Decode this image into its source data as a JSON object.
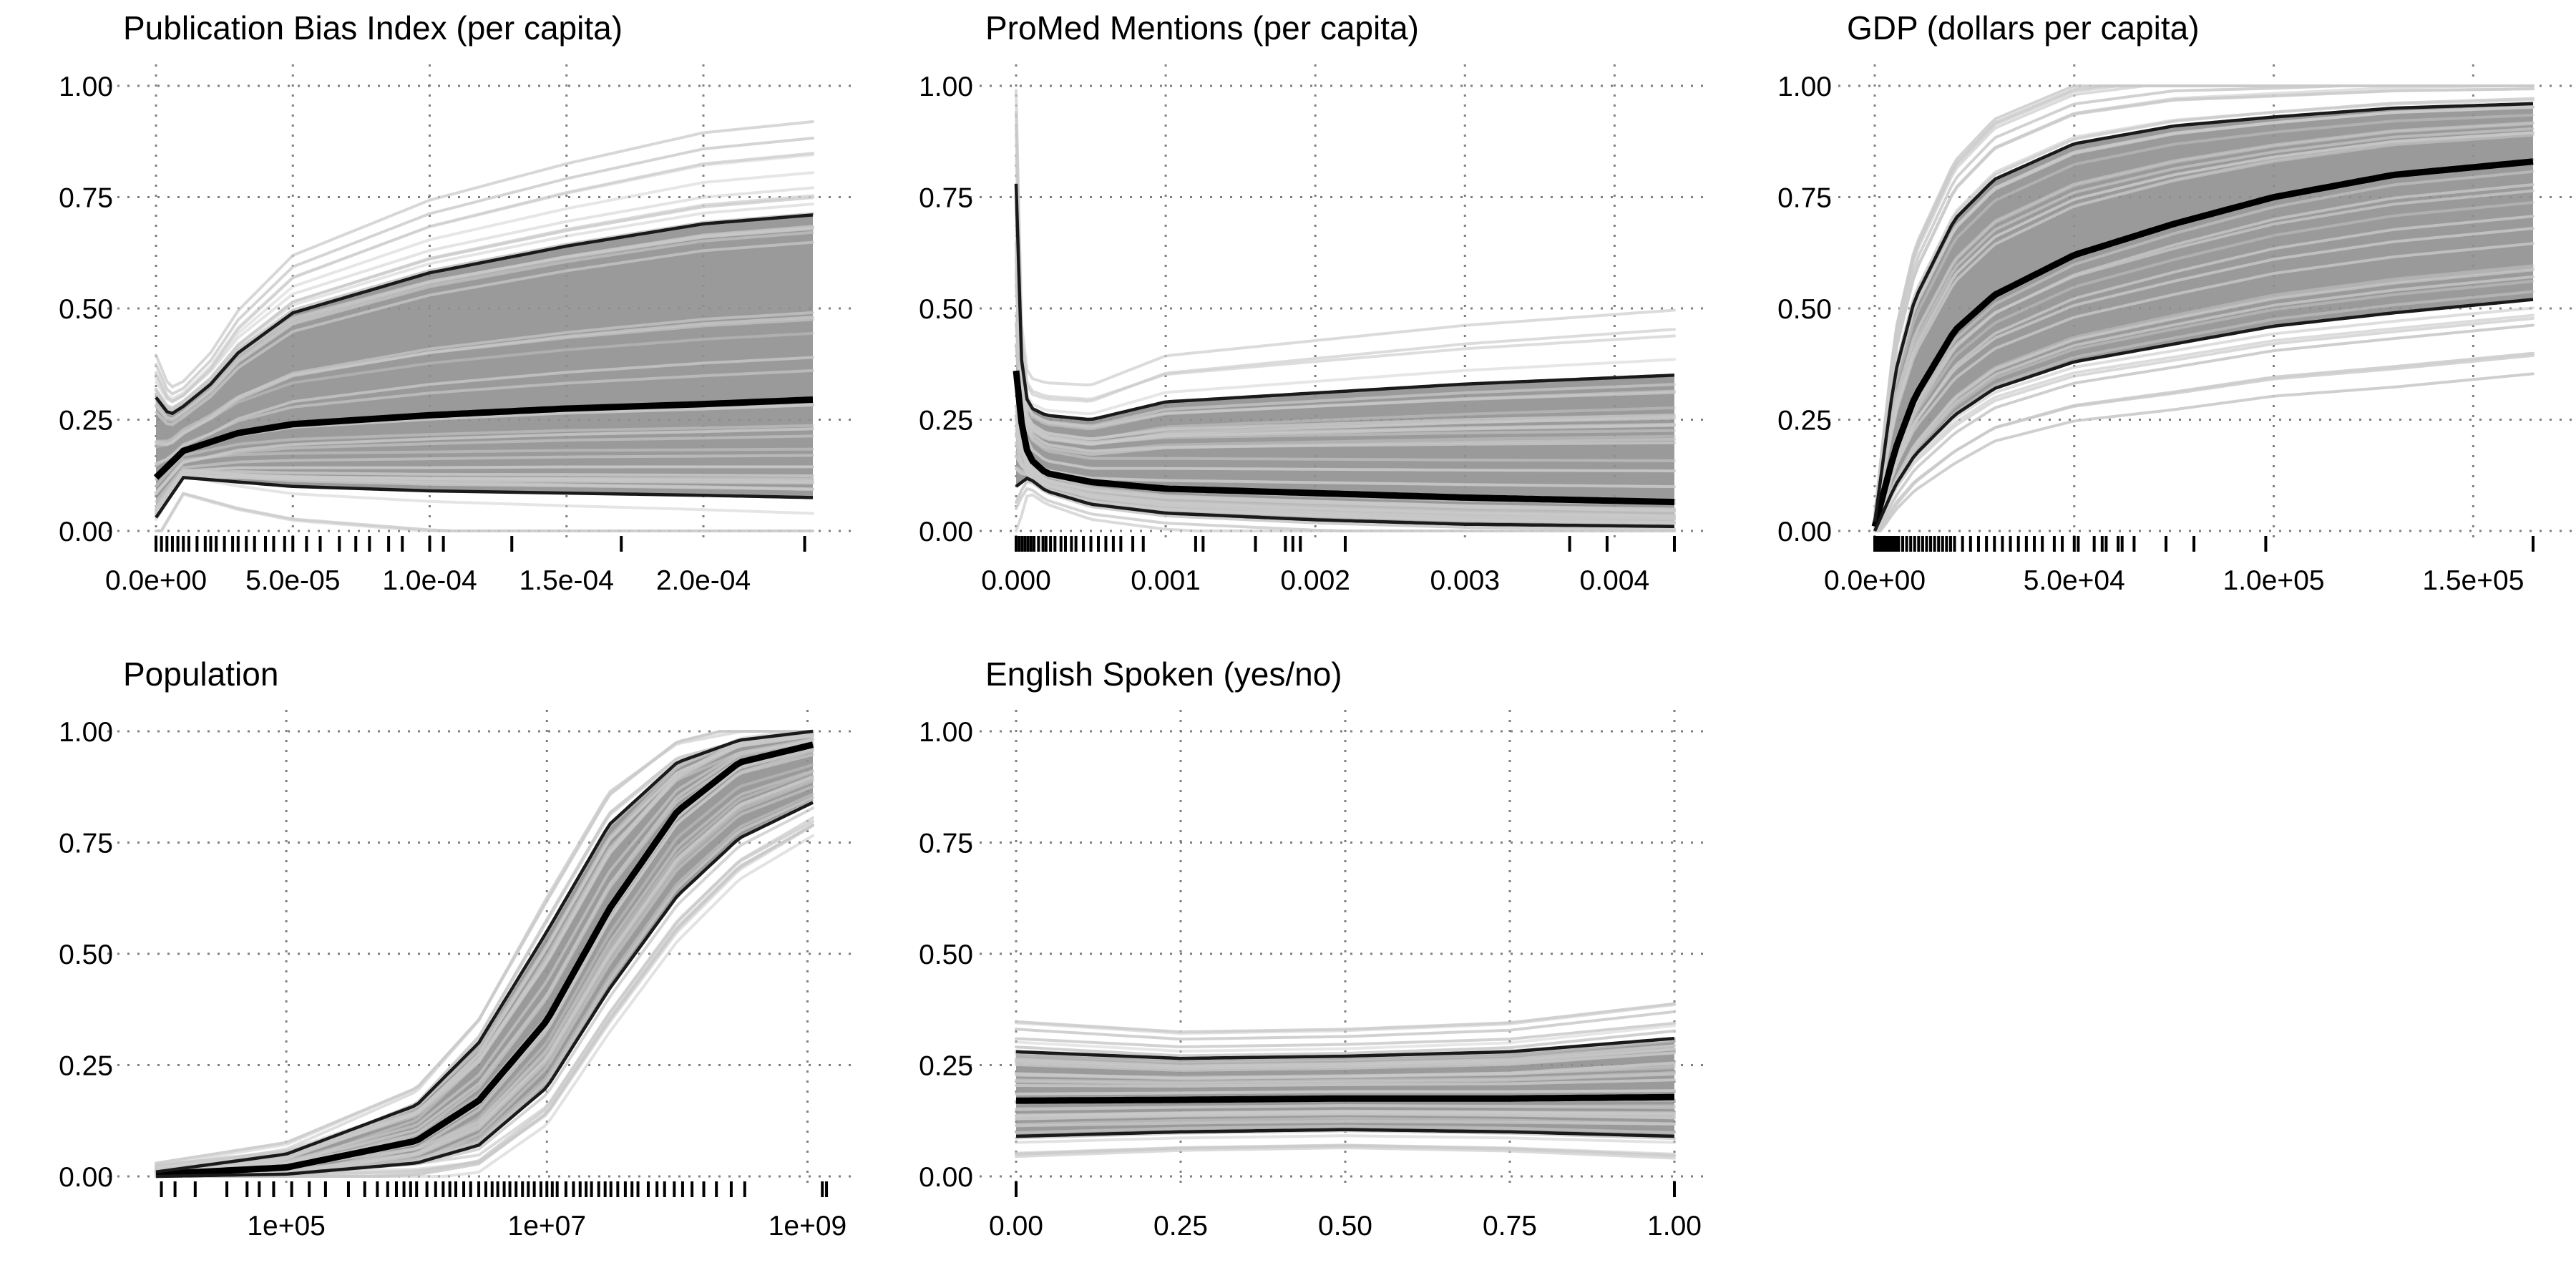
{
  "chart_data": [
    {
      "type": "line",
      "title": "Publication Bias Index (per capita)",
      "x_scale": "linear",
      "xlim": [
        0,
        0.00024
      ],
      "ylim": [
        0,
        1
      ],
      "x_ticks": [
        0,
        5e-05,
        0.0001,
        0.00015,
        0.0002
      ],
      "x_tick_labels": [
        "0.0e+00",
        "5.0e-05",
        "1.0e-04",
        "1.5e-04",
        "2.0e-04"
      ],
      "y_ticks": [
        0,
        0.25,
        0.5,
        0.75,
        1
      ],
      "y_tick_labels": [
        "0.00",
        "0.25",
        "0.50",
        "0.75",
        "1.00"
      ],
      "grid": true,
      "series": [
        {
          "role": "mean",
          "x": [
            0,
            1e-05,
            3e-05,
            5e-05,
            0.0001,
            0.00015,
            0.0002,
            0.00024
          ],
          "y": [
            0.12,
            0.18,
            0.22,
            0.24,
            0.26,
            0.275,
            0.285,
            0.295
          ]
        },
        {
          "role": "upper",
          "x": [
            0,
            5e-06,
            1e-05,
            2e-05,
            3e-05,
            5e-05,
            0.0001,
            0.00015,
            0.0002,
            0.00024
          ],
          "y": [
            0.3,
            0.26,
            0.28,
            0.33,
            0.4,
            0.49,
            0.58,
            0.64,
            0.69,
            0.71
          ]
        },
        {
          "role": "lower",
          "x": [
            0,
            1e-05,
            5e-05,
            0.0001,
            0.00015,
            0.0002,
            0.00024
          ],
          "y": [
            0.03,
            0.12,
            0.1,
            0.09,
            0.085,
            0.08,
            0.075
          ]
        }
      ],
      "rug": [
        0,
        2e-06,
        4e-06,
        6e-06,
        8e-06,
        1e-05,
        1.2e-05,
        1.5e-05,
        1.8e-05,
        2e-05,
        2.2e-05,
        2.5e-05,
        2.8e-05,
        3e-05,
        3.3e-05,
        3.6e-05,
        4e-05,
        4.3e-05,
        4.7e-05,
        5e-05,
        5.5e-05,
        6e-05,
        6.7e-05,
        7.3e-05,
        7.8e-05,
        8.5e-05,
        9e-05,
        0.0001,
        0.000105,
        0.00013,
        0.00017,
        0.000237
      ]
    },
    {
      "type": "line",
      "title": "ProMed Mentions (per capita)",
      "x_scale": "linear",
      "xlim": [
        0,
        0.0044
      ],
      "ylim": [
        0,
        1
      ],
      "x_ticks": [
        0,
        0.001,
        0.002,
        0.003,
        0.004
      ],
      "x_tick_labels": [
        "0.000",
        "0.001",
        "0.002",
        "0.003",
        "0.004"
      ],
      "y_ticks": [
        0,
        0.25,
        0.5,
        0.75,
        1
      ],
      "y_tick_labels": [
        "0.00",
        "0.25",
        "0.50",
        "0.75",
        "1.00"
      ],
      "grid": true,
      "series": [
        {
          "role": "mean",
          "x": [
            0,
            5e-05,
            0.0001,
            0.0002,
            0.0005,
            0.001,
            0.002,
            0.003,
            0.0044
          ],
          "y": [
            0.36,
            0.2,
            0.16,
            0.13,
            0.11,
            0.095,
            0.085,
            0.075,
            0.065
          ]
        },
        {
          "role": "upper",
          "x": [
            0,
            3e-05,
            8e-05,
            0.0002,
            0.0005,
            0.001,
            0.002,
            0.003,
            0.0044
          ],
          "y": [
            0.78,
            0.4,
            0.28,
            0.26,
            0.25,
            0.29,
            0.31,
            0.33,
            0.35
          ]
        },
        {
          "role": "lower",
          "x": [
            0,
            8e-05,
            0.0002,
            0.0005,
            0.001,
            0.002,
            0.003,
            0.0044
          ],
          "y": [
            0.1,
            0.12,
            0.09,
            0.06,
            0.04,
            0.025,
            0.015,
            0.01
          ]
        }
      ],
      "rug": [
        0,
        2e-05,
        4e-05,
        6e-05,
        8e-05,
        0.0001,
        0.00012,
        0.00015,
        0.00018,
        0.0002,
        0.00023,
        0.00026,
        0.0003,
        0.00033,
        0.00037,
        0.0004,
        0.00045,
        0.0005,
        0.00055,
        0.0006,
        0.00065,
        0.0007,
        0.00078,
        0.00085,
        0.0012,
        0.00125,
        0.0016,
        0.0018,
        0.00185,
        0.0019,
        0.0022,
        0.0037,
        0.00395,
        0.0044
      ]
    },
    {
      "type": "line",
      "title": "GDP (dollars per capita)",
      "x_scale": "linear",
      "xlim": [
        0,
        165000
      ],
      "ylim": [
        0,
        1
      ],
      "x_ticks": [
        0,
        50000,
        100000,
        150000
      ],
      "x_tick_labels": [
        "0.0e+00",
        "5.0e+04",
        "1.0e+05",
        "1.5e+05"
      ],
      "y_ticks": [
        0,
        0.25,
        0.5,
        0.75,
        1
      ],
      "y_tick_labels": [
        "0.00",
        "0.25",
        "0.50",
        "0.75",
        "1.00"
      ],
      "grid": true,
      "series": [
        {
          "role": "mean",
          "x": [
            0,
            5000,
            10000,
            20000,
            30000,
            50000,
            75000,
            100000,
            130000,
            165000
          ],
          "y": [
            0.01,
            0.18,
            0.3,
            0.45,
            0.53,
            0.62,
            0.69,
            0.75,
            0.8,
            0.83
          ]
        },
        {
          "role": "upper",
          "x": [
            0,
            5000,
            10000,
            20000,
            30000,
            50000,
            75000,
            100000,
            130000,
            165000
          ],
          "y": [
            0.02,
            0.35,
            0.52,
            0.7,
            0.79,
            0.87,
            0.91,
            0.93,
            0.95,
            0.96
          ]
        },
        {
          "role": "lower",
          "x": [
            0,
            5000,
            10000,
            20000,
            30000,
            50000,
            75000,
            100000,
            130000,
            165000
          ],
          "y": [
            0.0,
            0.1,
            0.17,
            0.26,
            0.32,
            0.38,
            0.42,
            0.46,
            0.49,
            0.52
          ]
        }
      ],
      "rug": [
        0,
        500,
        1000,
        1500,
        2000,
        2500,
        3000,
        3500,
        4000,
        4500,
        5000,
        5500,
        6000,
        7000,
        8000,
        9000,
        10000,
        11000,
        12000,
        13000,
        14000,
        15000,
        16000,
        17000,
        18000,
        19000,
        20000,
        22000,
        24000,
        26000,
        28000,
        30000,
        32000,
        34000,
        36000,
        38000,
        40000,
        42000,
        45000,
        47000,
        50000,
        51000,
        55000,
        57000,
        58000,
        61000,
        62000,
        65000,
        73000,
        80000,
        98000,
        165000
      ]
    },
    {
      "type": "line",
      "title": "Population",
      "x_scale": "log",
      "xlim": [
        10000,
        1100000000
      ],
      "ylim": [
        0,
        1
      ],
      "x_ticks": [
        100000,
        10000000,
        1000000000
      ],
      "x_tick_labels": [
        "1e+05",
        "1e+07",
        "1e+09"
      ],
      "y_ticks": [
        0,
        0.25,
        0.5,
        0.75,
        1
      ],
      "y_tick_labels": [
        "0.00",
        "0.25",
        "0.50",
        "0.75",
        "1.00"
      ],
      "grid": true,
      "series": [
        {
          "role": "mean",
          "x": [
            10000,
            100000,
            1000000,
            3000000,
            10000000,
            30000000,
            100000000,
            300000000,
            1100000000
          ],
          "y": [
            0.005,
            0.02,
            0.08,
            0.17,
            0.35,
            0.6,
            0.82,
            0.93,
            0.97
          ]
        },
        {
          "role": "upper",
          "x": [
            10000,
            100000,
            1000000,
            3000000,
            10000000,
            30000000,
            100000000,
            300000000,
            1100000000
          ],
          "y": [
            0.01,
            0.05,
            0.16,
            0.3,
            0.55,
            0.79,
            0.93,
            0.98,
            1.0
          ]
        },
        {
          "role": "lower",
          "x": [
            10000,
            100000,
            1000000,
            3000000,
            10000000,
            30000000,
            100000000,
            300000000,
            1100000000
          ],
          "y": [
            0.0,
            0.005,
            0.03,
            0.07,
            0.2,
            0.42,
            0.63,
            0.76,
            0.84
          ]
        }
      ],
      "rug": [
        11000,
        14000,
        20000,
        35000,
        50000,
        62000,
        80000,
        110000,
        150000,
        200000,
        300000,
        400000,
        500000,
        600000,
        700000,
        800000,
        900000,
        1000000,
        1200000,
        1400000,
        1600000,
        1800000,
        2000000,
        2300000,
        2600000,
        3000000,
        3400000,
        3800000,
        4200000,
        4700000,
        5200000,
        5800000,
        6500000,
        7200000,
        8000000,
        9000000,
        10000000,
        11000000,
        12000000,
        14000000,
        16000000,
        18000000,
        20000000,
        22000000,
        25000000,
        28000000,
        31000000,
        35000000,
        40000000,
        45000000,
        50000000,
        60000000,
        70000000,
        80000000,
        95000000,
        110000000,
        130000000,
        160000000,
        200000000,
        260000000,
        330000000,
        1300000000,
        1400000000
      ]
    },
    {
      "type": "line",
      "title": "English Spoken (yes/no)",
      "x_scale": "linear",
      "xlim": [
        0,
        1
      ],
      "ylim": [
        0,
        1
      ],
      "x_ticks": [
        0,
        0.25,
        0.5,
        0.75,
        1
      ],
      "x_tick_labels": [
        "0.00",
        "0.25",
        "0.50",
        "0.75",
        "1.00"
      ],
      "y_ticks": [
        0,
        0.25,
        0.5,
        0.75,
        1
      ],
      "y_tick_labels": [
        "0.00",
        "0.25",
        "0.50",
        "0.75",
        "1.00"
      ],
      "grid": true,
      "series": [
        {
          "role": "mean",
          "x": [
            0,
            0.25,
            0.5,
            0.75,
            1
          ],
          "y": [
            0.17,
            0.172,
            0.175,
            0.175,
            0.178
          ]
        },
        {
          "role": "upper",
          "x": [
            0,
            0.25,
            0.5,
            0.75,
            1
          ],
          "y": [
            0.28,
            0.265,
            0.27,
            0.28,
            0.31
          ]
        },
        {
          "role": "lower",
          "x": [
            0,
            0.25,
            0.5,
            0.75,
            1
          ],
          "y": [
            0.09,
            0.1,
            0.105,
            0.1,
            0.09
          ]
        }
      ],
      "rug": [
        0,
        1
      ]
    }
  ],
  "colors": {
    "background_curves": "#c9c9c9",
    "band_fill": "#8f8f8f",
    "band_lines": "#1a1a1a",
    "mean_line": "#000000",
    "rug": "#000000",
    "grid": "#7f7f7f"
  }
}
